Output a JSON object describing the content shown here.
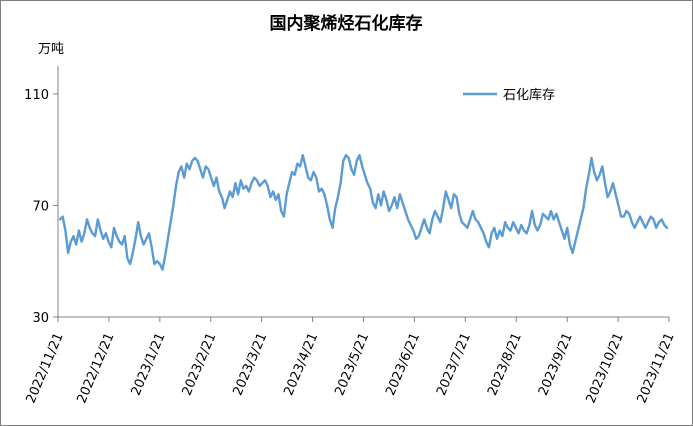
{
  "chart_data": {
    "type": "line",
    "title": "国内聚烯烃石化库存",
    "unit_label": "万吨",
    "ylabel": "",
    "xlabel": "",
    "ylim": [
      30,
      120
    ],
    "yticks": [
      30,
      70,
      110
    ],
    "grid": false,
    "legend_position": "top-right",
    "x_tick_labels": [
      "2022/11/21",
      "2022/12/21",
      "2023/1/21",
      "2023/2/21",
      "2023/3/21",
      "2023/4/21",
      "2023/5/21",
      "2023/6/21",
      "2023/7/21",
      "2023/8/21",
      "2023/9/21",
      "2023/10/21",
      "2023/11/21"
    ],
    "series": [
      {
        "name": "石化库存",
        "color": "#5b9bd5",
        "values": [
          65,
          66,
          61,
          53,
          57,
          59,
          56,
          61,
          57,
          60,
          65,
          62,
          60,
          59,
          65,
          61,
          58,
          60,
          57,
          55,
          62,
          59,
          57,
          56,
          59,
          51,
          49,
          53,
          58,
          64,
          59,
          56,
          58,
          60,
          55,
          49,
          50,
          49,
          47,
          52,
          58,
          64,
          70,
          77,
          82,
          84,
          80,
          85,
          83,
          86,
          87,
          86,
          83,
          80,
          84,
          83,
          80,
          77,
          80,
          75,
          73,
          69,
          72,
          75,
          73,
          78,
          74,
          79,
          76,
          77,
          75,
          78,
          80,
          79,
          77,
          78,
          79,
          77,
          73,
          75,
          72,
          74,
          68,
          66,
          74,
          78,
          82,
          81,
          85,
          84,
          88,
          84,
          80,
          79,
          82,
          80,
          75,
          76,
          74,
          70,
          65,
          62,
          69,
          73,
          78,
          86,
          88,
          87,
          83,
          81,
          86,
          88,
          84,
          81,
          78,
          76,
          71,
          69,
          74,
          70,
          75,
          72,
          68,
          70,
          73,
          69,
          74,
          71,
          68,
          65,
          63,
          61,
          58,
          59,
          62,
          65,
          62,
          60,
          65,
          68,
          66,
          64,
          69,
          75,
          72,
          69,
          74,
          73,
          67,
          64,
          63,
          62,
          65,
          68,
          65,
          64,
          62,
          60,
          57,
          55,
          60,
          62,
          58,
          61,
          59,
          64,
          62,
          61,
          64,
          62,
          60,
          63,
          61,
          60,
          63,
          68,
          63,
          61,
          63,
          67,
          66,
          65,
          68,
          65,
          67,
          64,
          61,
          58,
          62,
          56,
          53,
          57,
          61,
          65,
          69,
          76,
          81,
          87,
          82,
          79,
          81,
          84,
          78,
          73,
          75,
          78,
          74,
          70,
          66,
          66,
          68,
          67,
          64,
          62,
          64,
          66,
          64,
          62,
          64,
          66,
          65,
          62,
          64,
          65,
          63,
          62
        ]
      }
    ]
  }
}
